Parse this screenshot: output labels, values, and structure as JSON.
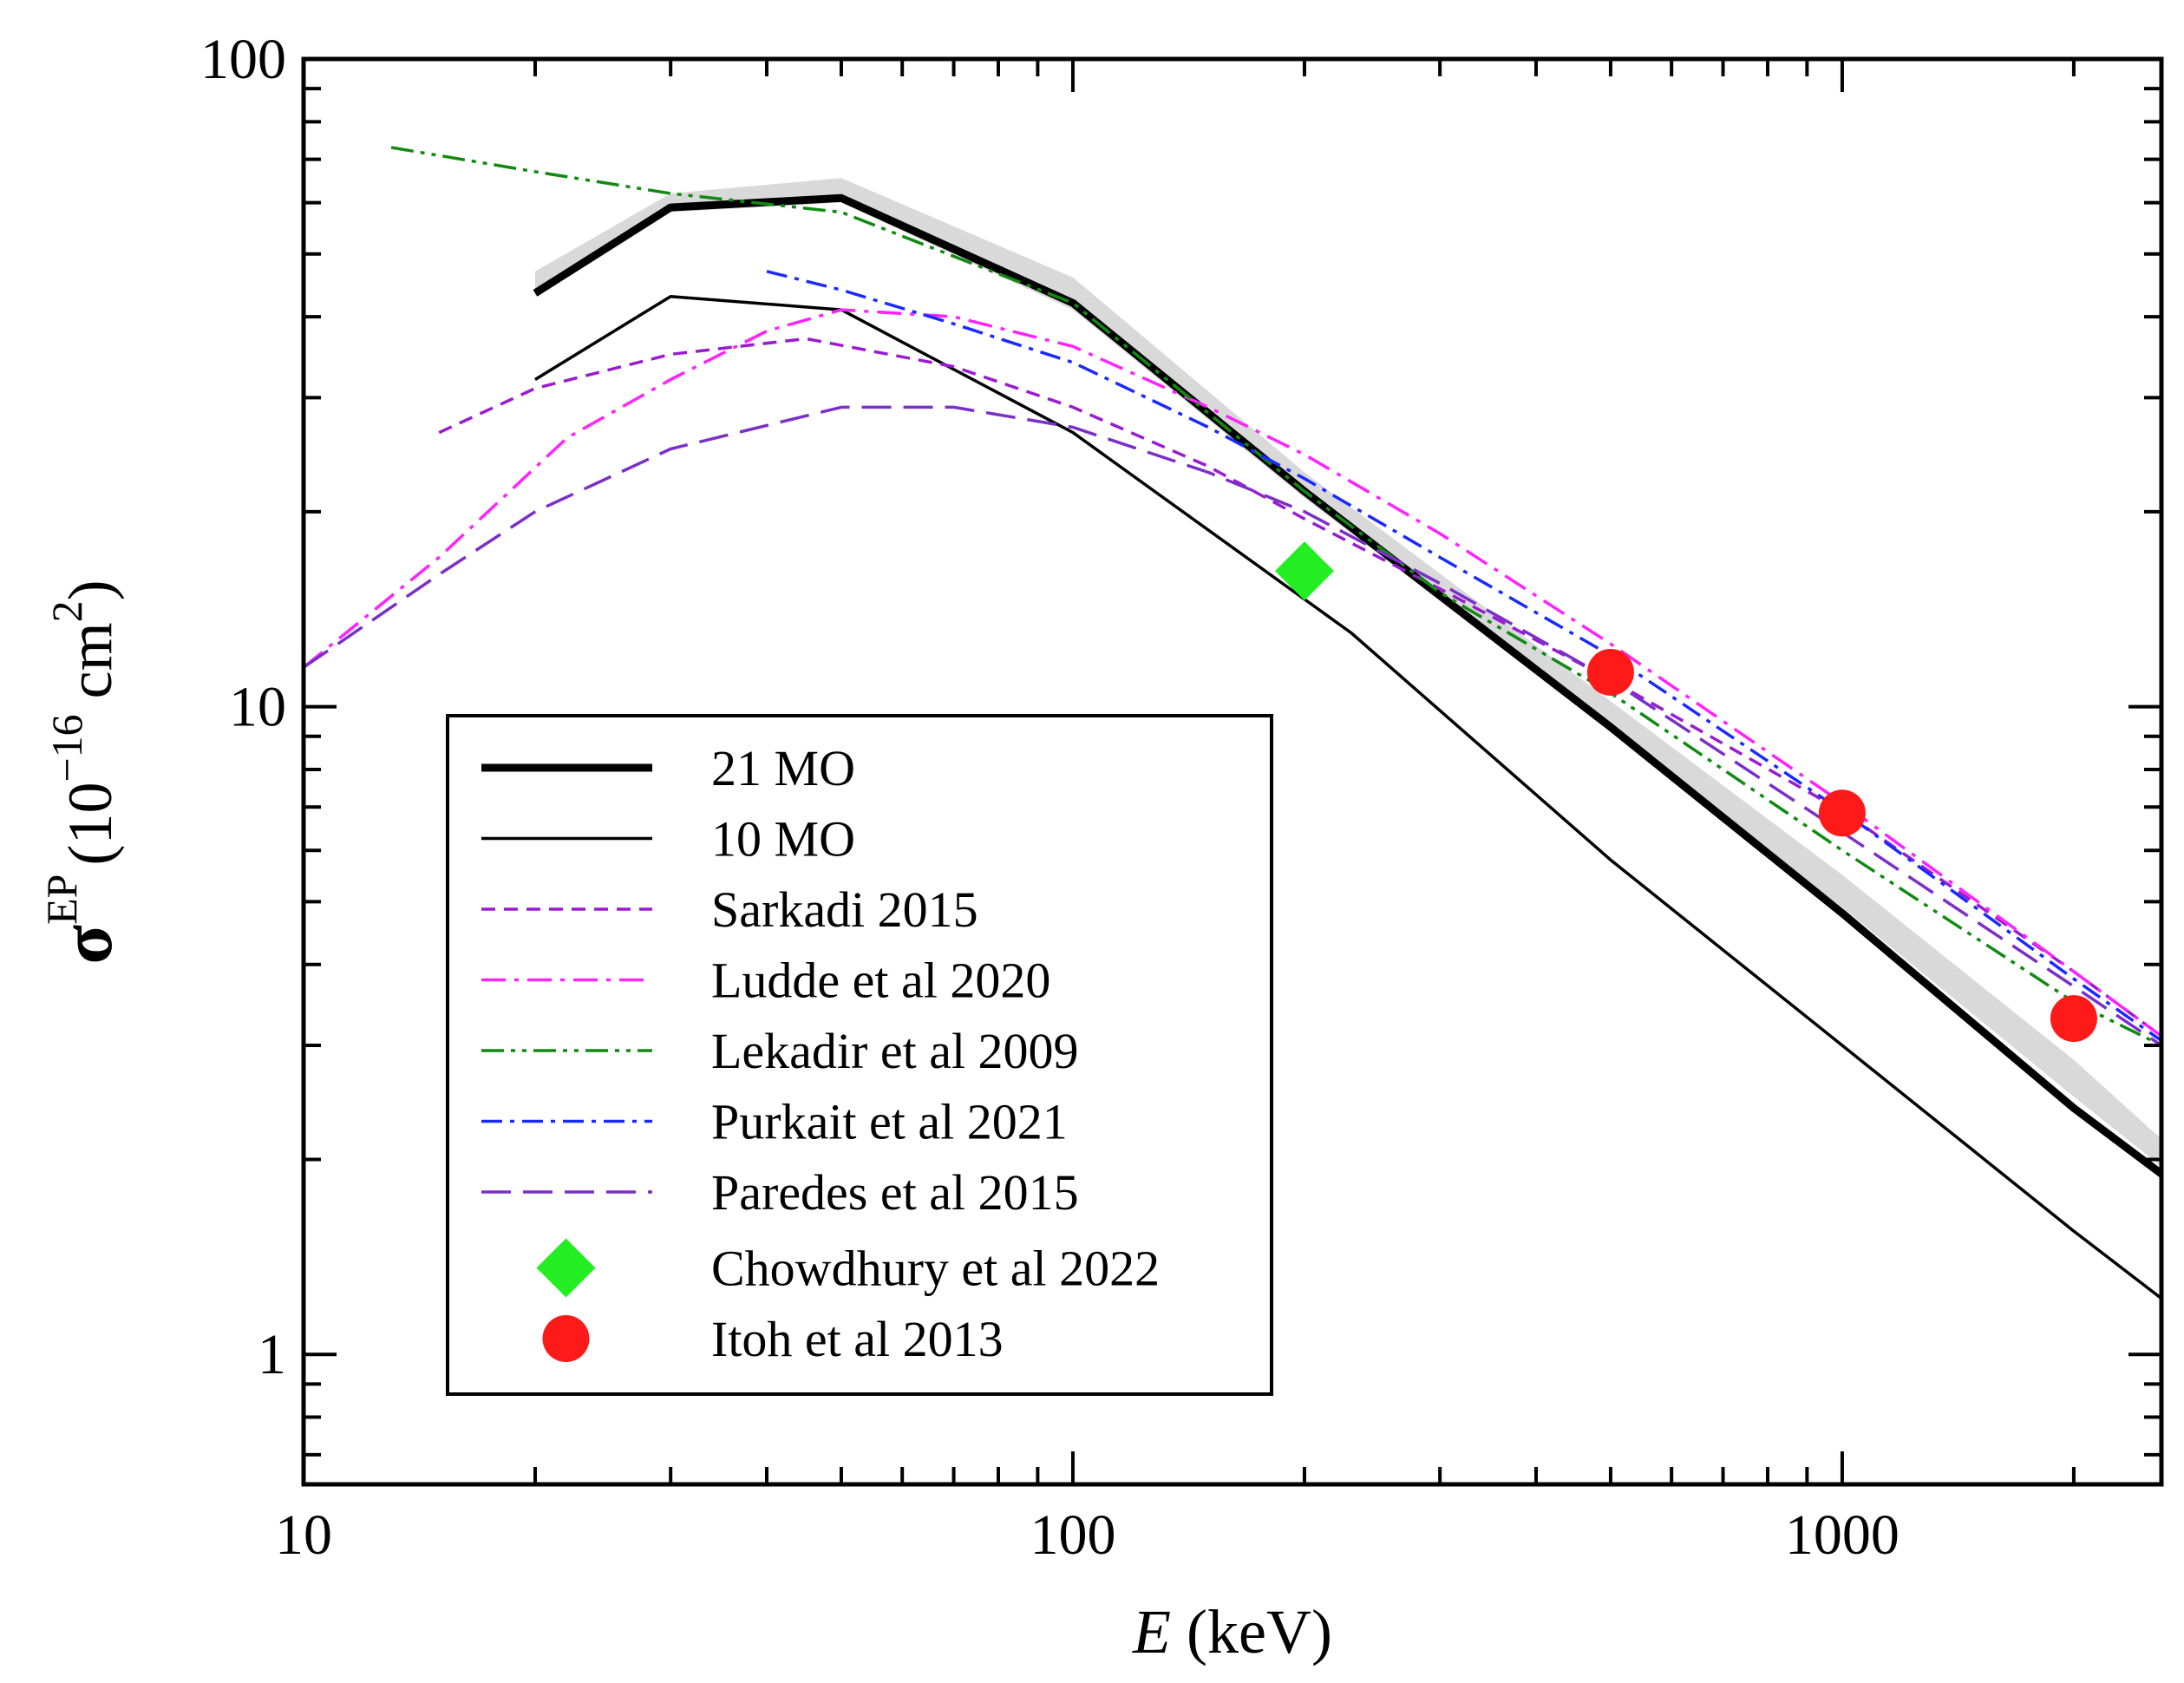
{
  "chart_data": {
    "type": "line",
    "xscale": "log",
    "yscale": "log",
    "xlim": [
      10,
      2600
    ],
    "ylim": [
      0.63,
      100
    ],
    "xlabel": {
      "italic": "E",
      "rest": " (keV)"
    },
    "ylabel": {
      "symbol": "σ",
      "superscript": "EP",
      "open": "(10",
      "exponent": "−16",
      "units": " cm",
      "units_exp": "2",
      "close": ")"
    },
    "x_ticks": [
      {
        "value": 10,
        "label": "10"
      },
      {
        "value": 100,
        "label": "100"
      },
      {
        "value": 1000,
        "label": "1000"
      }
    ],
    "y_ticks": [
      {
        "value": 1,
        "label": "1"
      },
      {
        "value": 10,
        "label": "10"
      },
      {
        "value": 100,
        "label": "100"
      }
    ],
    "band": {
      "name": "21 MO uncertainty band",
      "color": "#d9d9d9",
      "x": [
        20,
        30,
        50,
        100,
        200,
        500,
        1000,
        2000,
        2600
      ],
      "lower": [
        43,
        58,
        60,
        41,
        21,
        9.2,
        4.9,
        2.5,
        1.95
      ],
      "upper": [
        47,
        62,
        65.5,
        46,
        23,
        10.2,
        5.5,
        2.85,
        2.15
      ]
    },
    "series": [
      {
        "name": "21 MO",
        "color": "#000000",
        "dash": "solid",
        "width": 9,
        "x": [
          20,
          30,
          50,
          100,
          200,
          500,
          1000,
          2000,
          2600
        ],
        "y": [
          43.5,
          59,
          61,
          42,
          21.5,
          9.3,
          4.8,
          2.4,
          1.9
        ]
      },
      {
        "name": "10 MO",
        "color": "#000000",
        "dash": "solid",
        "width": 3.5,
        "x": [
          20,
          30,
          50,
          100,
          230,
          500,
          1000,
          2000,
          2600
        ],
        "y": [
          32,
          43,
          41,
          26.5,
          13,
          5.8,
          3.0,
          1.55,
          1.22
        ]
      },
      {
        "name": "Sarkadi 2015",
        "color": "#9a1bd0",
        "dash": "16,10",
        "width": 3.5,
        "x": [
          15,
          20,
          30,
          45,
          70,
          100,
          150,
          200,
          300,
          500,
          1000,
          2000,
          2600
        ],
        "y": [
          26.5,
          31,
          35,
          37,
          33.5,
          29,
          23.5,
          19.5,
          15.2,
          11,
          6.9,
          3.9,
          3.1
        ]
      },
      {
        "name": "Ludde et al 2020",
        "color": "#ff22ff",
        "dash": "28,10,5,10",
        "width": 3.5,
        "x": [
          10,
          15,
          22,
          30,
          40,
          50,
          70,
          100,
          150,
          200,
          300,
          500,
          1000,
          2000,
          2600
        ],
        "y": [
          11.5,
          17,
          26,
          32,
          38,
          41,
          40,
          36,
          29,
          24.5,
          18.5,
          12.5,
          7.1,
          3.9,
          3.1
        ]
      },
      {
        "name": "Lekadir et al 2009",
        "color": "#118a11",
        "dash": "26,8,5,8,5,8",
        "width": 3.5,
        "x": [
          13,
          20,
          30,
          50,
          100,
          200,
          300,
          500,
          1000,
          2000,
          2600
        ],
        "y": [
          73,
          67,
          62,
          58,
          42,
          21.5,
          15,
          10.5,
          6.0,
          3.5,
          3.0
        ]
      },
      {
        "name": "Purkait et al 2021",
        "color": "#1a2aff",
        "dash": "24,9,5,9",
        "width": 3.5,
        "x": [
          40,
          50,
          70,
          100,
          150,
          200,
          300,
          500,
          1000,
          2000,
          2600
        ],
        "y": [
          47,
          44,
          39,
          34,
          27,
          22.5,
          17,
          12,
          6.9,
          3.8,
          3.05
        ]
      },
      {
        "name": "Paredes et al 2015",
        "color": "#7a2fc8",
        "dash": "34,14",
        "width": 3.5,
        "x": [
          10,
          15,
          20,
          30,
          50,
          70,
          100,
          150,
          200,
          300,
          500,
          1000,
          2000,
          2600
        ],
        "y": [
          11.5,
          16,
          20,
          25,
          29,
          29,
          27,
          23,
          20,
          15.5,
          11,
          6.4,
          3.7,
          3.0
        ]
      }
    ],
    "markers": [
      {
        "name": "Chowdhury et al 2022",
        "shape": "diamond",
        "color": "#22ee22",
        "points": [
          {
            "x": 200,
            "y": 16.2
          }
        ]
      },
      {
        "name": "Itoh et al 2013",
        "shape": "circle",
        "color": "#ff1a1a",
        "points": [
          {
            "x": 500,
            "y": 11.3
          },
          {
            "x": 1000,
            "y": 6.85
          },
          {
            "x": 2000,
            "y": 3.3
          }
        ]
      }
    ],
    "legend": {
      "position": "lower-left",
      "entries": [
        {
          "label": "21 MO",
          "kind": "line",
          "ref": "21 MO"
        },
        {
          "label": "10 MO",
          "kind": "line",
          "ref": "10 MO"
        },
        {
          "label": "Sarkadi 2015",
          "kind": "line",
          "ref": "Sarkadi 2015"
        },
        {
          "label": "Ludde et al 2020",
          "kind": "line",
          "ref": "Ludde et al 2020"
        },
        {
          "label": "Lekadir et al 2009",
          "kind": "line",
          "ref": "Lekadir et al 2009"
        },
        {
          "label": "Purkait et al 2021",
          "kind": "line",
          "ref": "Purkait et al 2021"
        },
        {
          "label": "Paredes et al 2015",
          "kind": "line",
          "ref": "Paredes et al 2015"
        },
        {
          "label": "Chowdhury et al 2022",
          "kind": "marker",
          "ref": "Chowdhury et al 2022"
        },
        {
          "label": "Itoh et al 2013",
          "kind": "marker",
          "ref": "Itoh et al 2013"
        }
      ]
    }
  }
}
